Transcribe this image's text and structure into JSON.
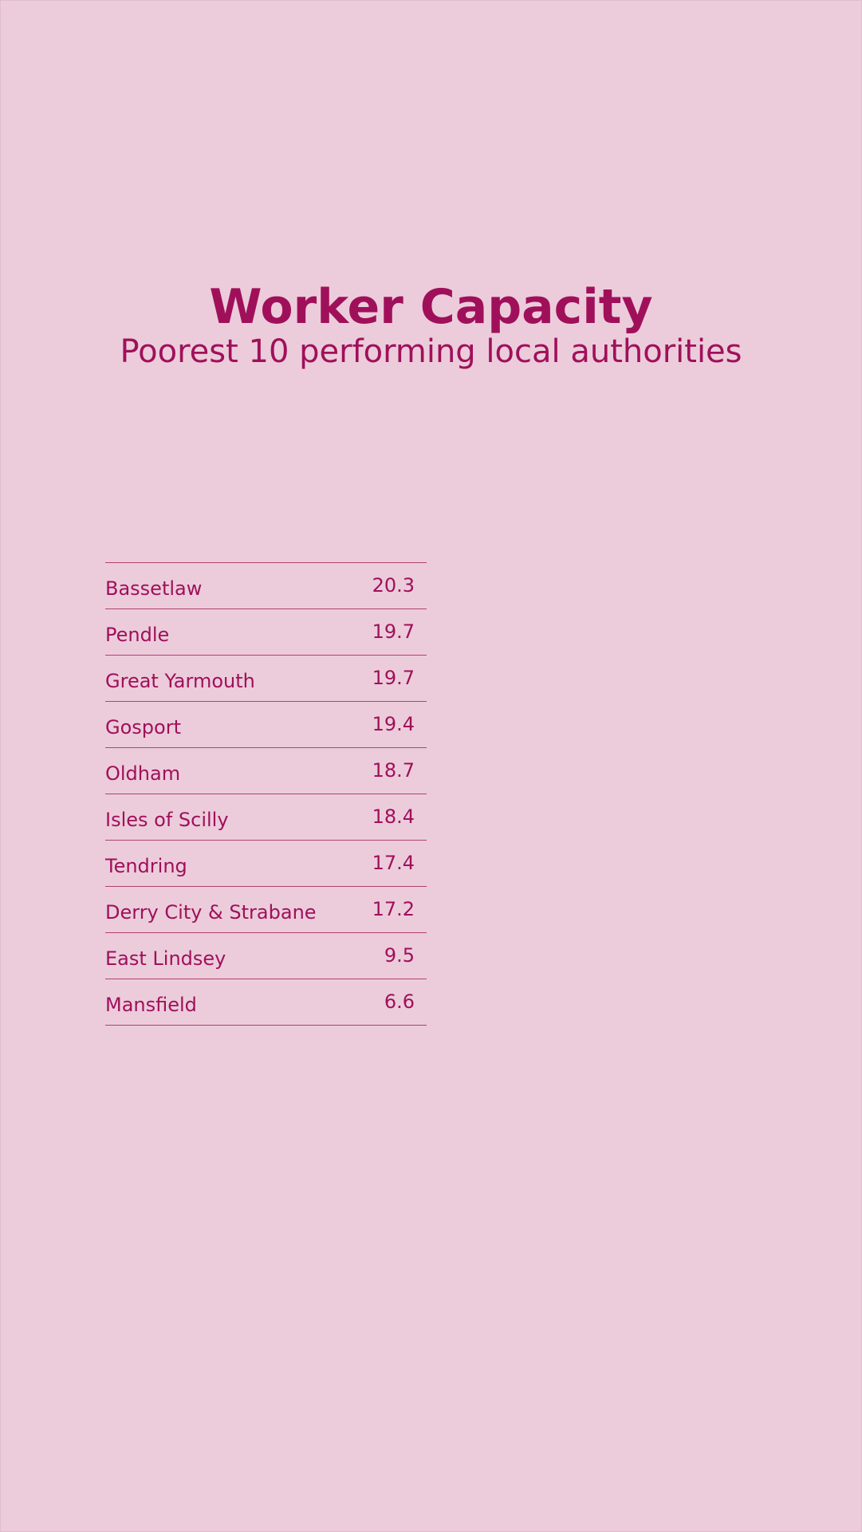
{
  "chart_data": {
    "type": "table",
    "title": "Worker Capacity",
    "subtitle": "Poorest 10 performing local authorities",
    "rows": [
      {
        "name": "Bassetlaw",
        "value": "20.3"
      },
      {
        "name": "Pendle",
        "value": "19.7"
      },
      {
        "name": "Great Yarmouth",
        "value": "19.7"
      },
      {
        "name": "Gosport",
        "value": "19.4"
      },
      {
        "name": "Oldham",
        "value": "18.7"
      },
      {
        "name": "Isles of Scilly",
        "value": "18.4"
      },
      {
        "name": "Tendring",
        "value": "17.4"
      },
      {
        "name": "Derry City & Strabane",
        "value": "17.2"
      },
      {
        "name": "East Lindsey",
        "value": "9.5"
      },
      {
        "name": "Mansfield",
        "value": "6.6"
      }
    ]
  },
  "colors": {
    "background": "#ecccdb",
    "text": "#a0105a",
    "rule": "#b0426f"
  }
}
